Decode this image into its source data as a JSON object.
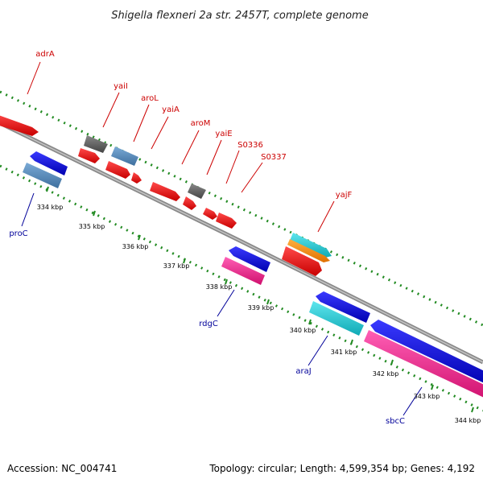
{
  "title": "Shigella flexneri 2a str. 2457T, complete genome",
  "footer": {
    "accession": "Accession: NC_004741",
    "summary": "Topology: circular; Length: 4,599,354 bp; Genes: 4,192"
  },
  "colors": {
    "forward_label": "#cc0000",
    "reverse_label": "#000099",
    "backbone": "#888888",
    "tick": "#228b22"
  },
  "kbp_labels": [
    "334 kbp",
    "335 kbp",
    "336 kbp",
    "337 kbp",
    "338 kbp",
    "339 kbp",
    "340 kbp",
    "341 kbp",
    "342 kbp",
    "343 kbp",
    "344 kbp"
  ],
  "forward_genes": [
    "adrA",
    "yaiI",
    "aroL",
    "yaiA",
    "aroM",
    "yaiE",
    "S0336",
    "S0337",
    "yajF"
  ],
  "reverse_genes": [
    "proC",
    "rdgC",
    "araJ",
    "sbcC"
  ]
}
